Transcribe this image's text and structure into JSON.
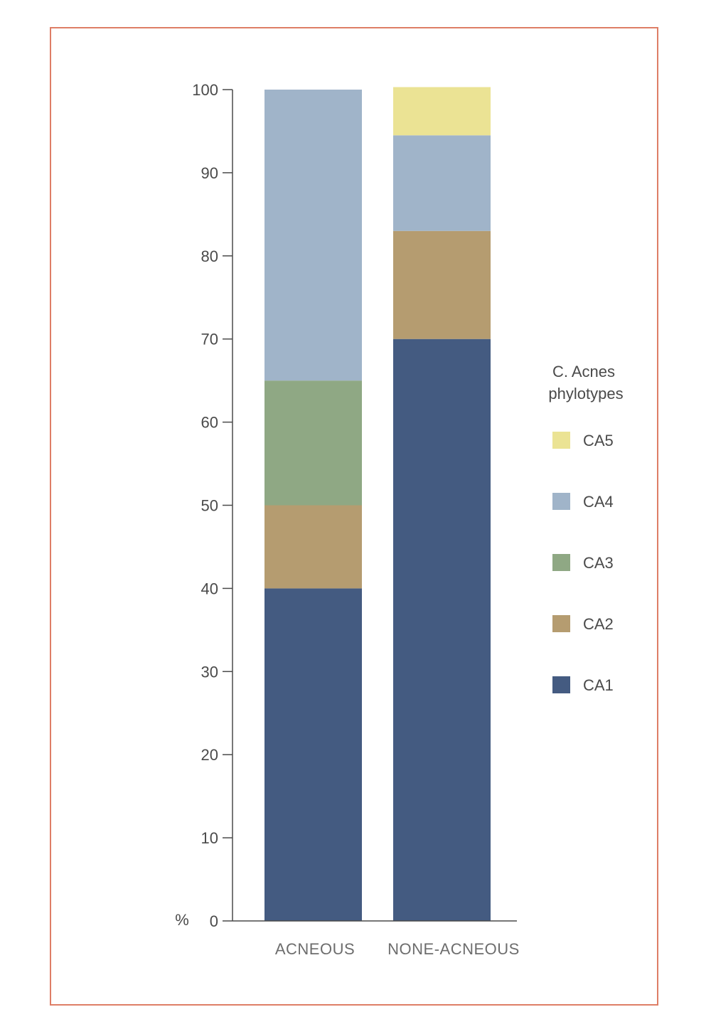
{
  "chart_data": {
    "type": "bar",
    "stacked": true,
    "categories": [
      "ACNEOUS",
      "NONE-ACNEOUS"
    ],
    "series": [
      {
        "name": "CA1",
        "color": "#445b81",
        "values": [
          40,
          70
        ]
      },
      {
        "name": "CA2",
        "color": "#b59c70",
        "values": [
          10,
          13
        ]
      },
      {
        "name": "CA3",
        "color": "#8fa884",
        "values": [
          15,
          0
        ]
      },
      {
        "name": "CA4",
        "color": "#a0b4c9",
        "values": [
          35,
          11.5
        ]
      },
      {
        "name": "CA5",
        "color": "#ebe394",
        "values": [
          0,
          5.8
        ]
      }
    ],
    "ylabel": "%",
    "ylim": [
      0,
      100
    ],
    "yticks": [
      0,
      10,
      20,
      30,
      40,
      50,
      60,
      70,
      80,
      90,
      100
    ],
    "legend": {
      "title_lines": [
        "C. Acnes",
        "phylotypes"
      ],
      "order": [
        "CA5",
        "CA4",
        "CA3",
        "CA2",
        "CA1"
      ],
      "placement": "right"
    }
  }
}
